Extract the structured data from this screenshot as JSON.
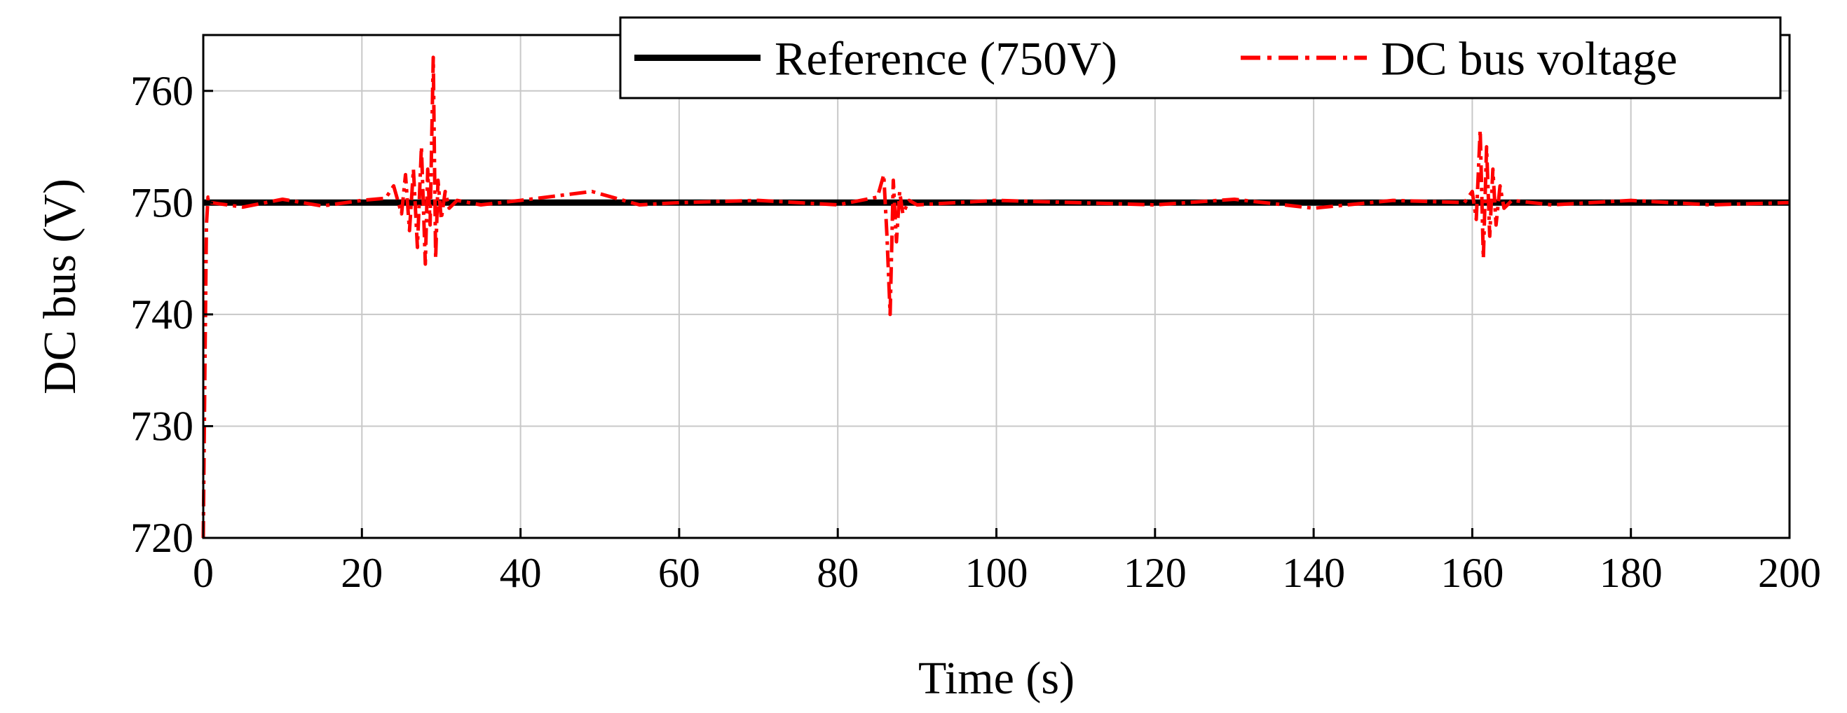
{
  "chart_data": {
    "type": "line",
    "title": "",
    "xlabel": "Time (s)",
    "ylabel": "DC bus (V)",
    "xlim": [
      0,
      200
    ],
    "ylim": [
      720,
      765
    ],
    "xticks": [
      "0",
      "20",
      "40",
      "60",
      "80",
      "100",
      "120",
      "140",
      "160",
      "180",
      "200"
    ],
    "yticks": [
      "720",
      "730",
      "740",
      "750",
      "760"
    ],
    "grid": true,
    "legend_position": "top-right",
    "series": [
      {
        "name": "Reference (750V)",
        "style": "solid",
        "color": "#000000",
        "x": [
          0,
          200
        ],
        "y": [
          750,
          750
        ]
      },
      {
        "name": "DC bus voltage",
        "style": "dash-dot",
        "color": "#ff0000",
        "x": [
          0,
          0.2,
          0.4,
          0.6,
          1,
          5,
          10,
          15,
          20,
          23,
          24,
          25,
          25.5,
          26,
          26.5,
          27,
          27.5,
          28,
          28.3,
          28.6,
          29,
          29.3,
          29.6,
          30,
          30.5,
          31,
          32,
          35,
          40,
          49,
          55,
          60,
          70,
          80,
          85,
          85.8,
          86.2,
          86.6,
          87,
          87.4,
          87.8,
          88.2,
          89,
          90,
          100,
          110,
          120,
          130,
          140,
          150,
          159,
          160,
          160.5,
          161,
          161.4,
          161.8,
          162.2,
          162.6,
          163,
          163.5,
          164,
          165,
          170,
          180,
          190,
          200
        ],
        "y": [
          720,
          735,
          748,
          750.5,
          750,
          749.6,
          750.3,
          749.7,
          750.2,
          750.4,
          751.5,
          749,
          752.5,
          747.5,
          753,
          746,
          755,
          744.5,
          753,
          748,
          763,
          745,
          752,
          748.5,
          751,
          749.5,
          750.2,
          749.8,
          750.2,
          751,
          749.8,
          750,
          750.2,
          749.8,
          750.5,
          752.5,
          747,
          740,
          752,
          746.5,
          751,
          749,
          750.2,
          749.8,
          750.2,
          750,
          749.8,
          750.3,
          749.5,
          750.2,
          750,
          751,
          748.5,
          756.5,
          745,
          755,
          747,
          753,
          748,
          751.5,
          749.5,
          750.2,
          749.8,
          750.2,
          749.8,
          750
        ]
      }
    ]
  }
}
